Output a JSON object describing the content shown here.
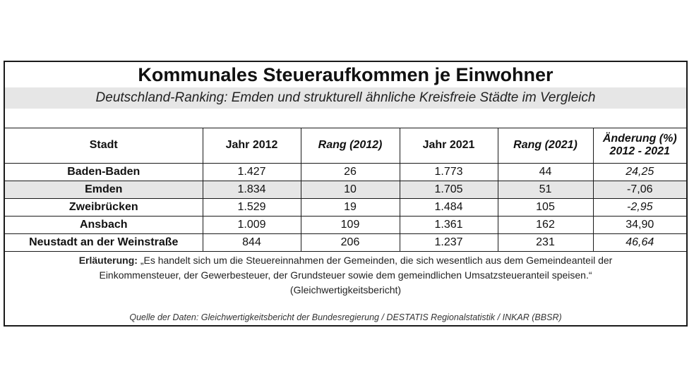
{
  "title": "Kommunales Steueraufkommen je Einwohner",
  "subtitle": "Deutschland-Ranking: Emden und strukturell ähnliche Kreisfreie Städte im Vergleich",
  "table": {
    "headers": {
      "stadt": "Stadt",
      "jahr2012": "Jahr 2012",
      "rang2012": "Rang (2012)",
      "jahr2021": "Jahr 2021",
      "rang2021": "Rang (2021)",
      "aenderung_line1": "Änderung (%)",
      "aenderung_line2": "2012 - 2021"
    },
    "rows": [
      {
        "stadt": "Baden-Baden",
        "jahr2012": "1.427",
        "rang2012": "26",
        "jahr2021": "1.773",
        "rang2021": "44",
        "aenderung": "24,25"
      },
      {
        "stadt": "Emden",
        "jahr2012": "1.834",
        "rang2012": "10",
        "jahr2021": "1.705",
        "rang2021": "51",
        "aenderung": "-7,06"
      },
      {
        "stadt": "Zweibrücken",
        "jahr2012": "1.529",
        "rang2012": "19",
        "jahr2021": "1.484",
        "rang2021": "105",
        "aenderung": "-2,95"
      },
      {
        "stadt": "Ansbach",
        "jahr2012": "1.009",
        "rang2012": "109",
        "jahr2021": "1.361",
        "rang2021": "162",
        "aenderung": "34,90"
      },
      {
        "stadt": "Neustadt an der Weinstraße",
        "jahr2012": "844",
        "rang2012": "206",
        "jahr2021": "1.237",
        "rang2021": "231",
        "aenderung": "46,64"
      }
    ]
  },
  "explanation": {
    "label": "Erläuterung:",
    "line1": "„Es handelt sich um die Steuereinnahmen der Gemeinden, die sich wesentlich aus dem Gemeindeanteil der",
    "line2": "Einkommensteuer, der Gewerbesteuer, der Grundsteuer sowie dem gemeindlichen Umsatzsteueranteil speisen.“",
    "line3": "(Gleichwertigkeitsbericht)"
  },
  "source": "Quelle der Daten: Gleichwertigkeitsbericht der Bundesregierung / DESTATIS Regionalstatistik / INKAR (BBSR)"
}
